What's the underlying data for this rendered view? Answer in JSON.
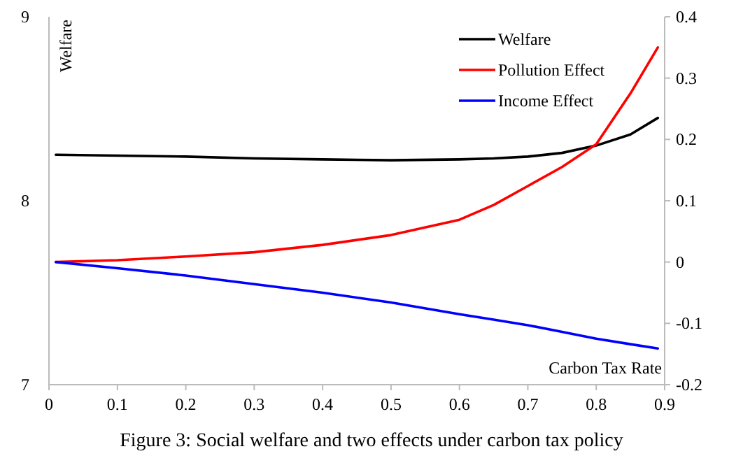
{
  "chart_data": {
    "type": "line",
    "title": "Figure 3: Social welfare and two effects under carbon tax policy",
    "xlabel": "Carbon Tax Rate",
    "ylabel": "Welfare",
    "xlim": [
      0,
      0.9
    ],
    "xticks": [
      0,
      0.1,
      0.2,
      0.3,
      0.4,
      0.5,
      0.6,
      0.7,
      0.8,
      0.9
    ],
    "ylim": [
      7,
      9
    ],
    "yticks": [
      7,
      8,
      9
    ],
    "y2lim": [
      -0.2,
      0.4
    ],
    "y2ticks": [
      -0.2,
      -0.1,
      0,
      0.1,
      0.2,
      0.3,
      0.4
    ],
    "x": [
      0.01,
      0.1,
      0.2,
      0.3,
      0.4,
      0.5,
      0.6,
      0.65,
      0.7,
      0.75,
      0.8,
      0.85,
      0.89
    ],
    "grid": false,
    "legend": "top right",
    "marker": "none",
    "line_style": "solid",
    "series": [
      {
        "name": "Welfare",
        "color": "#000000",
        "values": [
          8.25,
          8.245,
          8.24,
          8.23,
          8.225,
          8.22,
          8.225,
          8.23,
          8.24,
          8.26,
          8.3,
          8.36,
          8.45
        ]
      },
      {
        "name": "Pollution Effect",
        "color": "#ff0000",
        "values": [
          0,
          0.003,
          0.009,
          0.016,
          0.028,
          0.044,
          0.069,
          0.093,
          0.124,
          0.155,
          0.192,
          0.275,
          0.35
        ],
        "axis": "y2"
      },
      {
        "name": "Income Effect",
        "color": "#0000ff",
        "values": [
          0,
          -0.01,
          -0.022,
          -0.036,
          -0.05,
          -0.066,
          -0.085,
          -0.094,
          -0.103,
          -0.114,
          -0.125,
          -0.134,
          -0.141
        ],
        "axis": "y2"
      }
    ]
  }
}
